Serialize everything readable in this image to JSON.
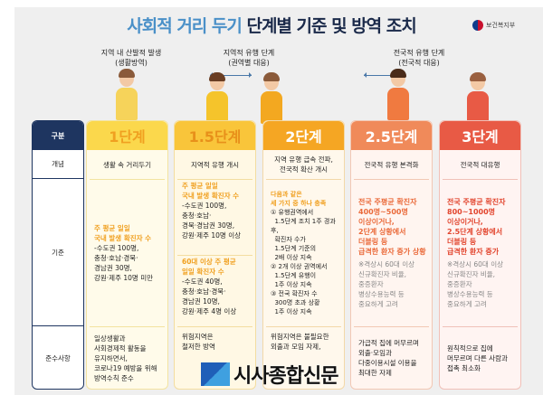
{
  "title": {
    "part1": "사회적 거리 두기",
    "part2": " 단계별 기준 및 방역 조치"
  },
  "logo": {
    "text": "보건복지부"
  },
  "captions": [
    {
      "line1": "지역 내 산발적 발생",
      "line2": "(생활방역)"
    },
    {
      "line1": "지역적 유행 단계",
      "line2": "(권역별 대응)"
    },
    {
      "line1": "전국적 유행 단계",
      "line2": "(전국적 대응)"
    }
  ],
  "rows": {
    "header": "구분",
    "concept": "개념",
    "criteria": "기준",
    "rules": "준수사항"
  },
  "colors": {
    "navy": "#1e3560",
    "stage1": "#fbd84c",
    "stage15": "#f9c53a",
    "stage2": "#f5a623",
    "stage25": "#f08a5a",
    "stage3": "#e85a45"
  },
  "stages": [
    {
      "label": "1단계",
      "concept": "생활 속 거리두기",
      "criteria_hl": "주 평균 일일\n국내 발생 확진자 수",
      "criteria": "-수도권 100명,\n충청·호남·경북·\n경남권 30명,\n강원·제주 10명 미만",
      "rules": "일상생활과\n사회경제적 활동을\n유지하면서,\n코로나19 예방을 위해\n방역수칙 준수"
    },
    {
      "label": "1.5단계",
      "concept": "지역적 유행 개시",
      "criteria_hl": "주 평균 일일\n국내 발생 확진자 수",
      "criteria": "-수도권 100명,\n충청·호남·\n경북·경남권 30명,\n강원·제주 10명 이상",
      "criteria2_hl": "60대 이상 주 평균\n일일 확진자 수",
      "criteria2": "-수도권 40명,\n충청·호남·경북·\n경남권 10명,\n강원·제주 4명 이상",
      "rules": "위험지역은\n철저한 방역"
    },
    {
      "label": "2단계",
      "concept": "지역 유행 급속 전파,\n전국적 확산 개시",
      "criteria_hl": "다음과 같은\n세 가지 중 하나 충족",
      "criteria": "① 유행권역에서\n  1.5단계 조치 1주 경과 후,\n  확진자 수가\n  1.5단계 기준의\n  2배 이상 지속\n② 2개 이상 권역에서\n  1.5단계 유행이\n  1주 이상 지속\n③ 전국 확진자 수\n  300명 초과 상황\n  1주 이상 지속",
      "rules": "위험지역은 불필요한\n외출과 모임 자제,"
    },
    {
      "label": "2.5단계",
      "concept": "전국적 유행 본격화",
      "criteria_hl": "전국 주평균 확진자\n400명~500명\n이상이거나,\n2단계 상황에서\n더블링 등\n급격한 환자 증가 상황",
      "criteria": "※격상시 60대 이상\n신규확진자 비율,\n중증환자\n병상수용능력 등\n중요하게 고려",
      "rules": "가급적 집에 머무르며\n외출·모임과\n다중이용시설 이용을\n최대한 자제"
    },
    {
      "label": "3단계",
      "concept": "전국적 대유행",
      "criteria_hl": "전국 주평균 확진자\n800~1000명\n이상이거나,\n2.5단계 상황에서\n더블링 등\n급격한 환자 증가",
      "criteria": "※격상시 60대 이상\n신규확진자 비율,\n중증환자\n병상수용능력 등\n중요하게 고려",
      "rules": "원칙적으로 집에\n머무르며 다른 사람과\n접촉 최소화"
    }
  ],
  "watermark": {
    "text": "시사종합신문"
  }
}
